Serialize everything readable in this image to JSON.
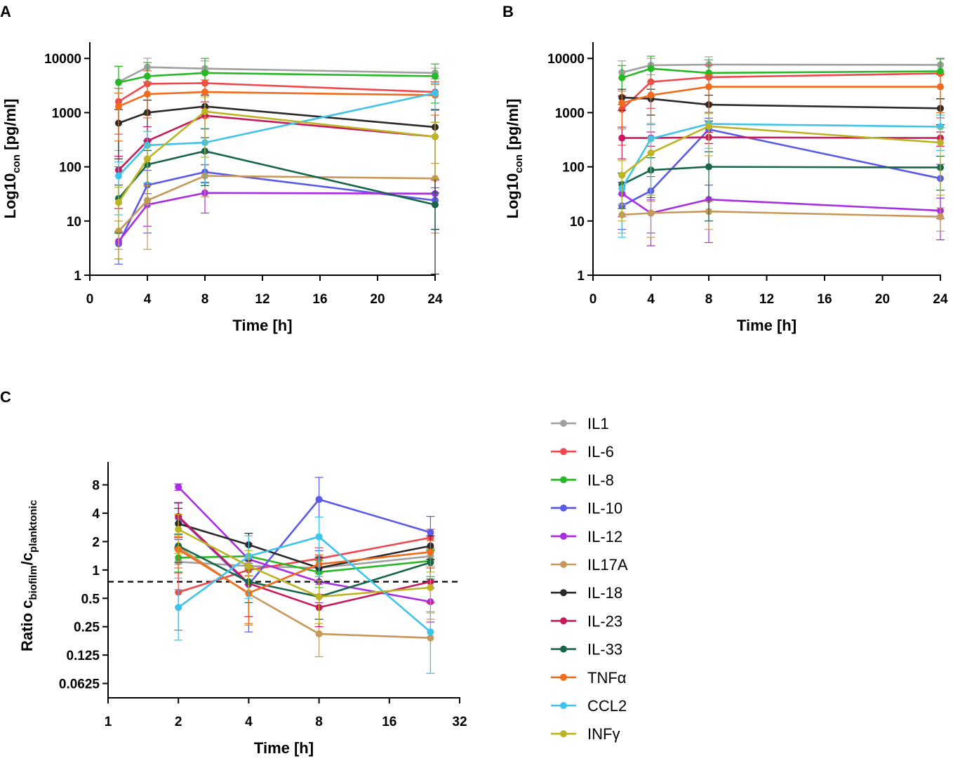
{
  "chart_data": [
    {
      "panel": "A",
      "type": "line",
      "xlabel": "Time [h]",
      "ylabel": "Log10",
      "ylabel_sub": "con",
      "ylabel_unit": " [pg/ml]",
      "xscale": "linear",
      "yscale": "log10",
      "xlim": [
        0,
        24
      ],
      "ylim": [
        1,
        20000
      ],
      "xticks": [
        0,
        4,
        8,
        12,
        16,
        20,
        24
      ],
      "yticks": [
        1,
        10,
        100,
        1000,
        10000
      ],
      "x": [
        2,
        4,
        8,
        24
      ],
      "series": [
        {
          "name": "IL1",
          "values": [
            3700,
            6900,
            6500,
            5400
          ],
          "err": [
            3500,
            3200,
            2500,
            1200
          ]
        },
        {
          "name": "IL-6",
          "values": [
            1600,
            3400,
            3500,
            2400
          ],
          "err": [
            1200,
            2500,
            2300,
            1300
          ]
        },
        {
          "name": "IL-8",
          "values": [
            3600,
            4700,
            5400,
            4700
          ],
          "err": [
            3500,
            3700,
            4600,
            3200
          ]
        },
        {
          "name": "IL-10",
          "values": [
            3.8,
            46,
            80,
            24
          ],
          "err": [
            2.2,
            40,
            30,
            17
          ]
        },
        {
          "name": "IL-12",
          "values": [
            4.2,
            20,
            33,
            32
          ],
          "err": [
            2.2,
            12,
            19,
            25
          ]
        },
        {
          "name": "IL17A",
          "values": [
            6.5,
            24,
            68,
            61
          ],
          "err": [
            3.5,
            21,
            40,
            55
          ]
        },
        {
          "name": "IL-18",
          "values": [
            640,
            1000,
            1300,
            540
          ],
          "err": [
            500,
            700,
            800,
            600
          ]
        },
        {
          "name": "IL-23",
          "values": [
            87,
            300,
            880,
            360
          ],
          "err": [
            70,
            250,
            700,
            300
          ]
        },
        {
          "name": "IL-33",
          "values": [
            26,
            110,
            195,
            20
          ],
          "err": [
            20,
            90,
            150,
            13
          ]
        },
        {
          "name": "TNFα",
          "values": [
            1300,
            2200,
            2400,
            2100
          ],
          "err": [
            1000,
            1400,
            1600,
            1200
          ]
        },
        {
          "name": "CCL2",
          "values": [
            68,
            250,
            280,
            2300
          ],
          "err": [
            55,
            200,
            230,
            1200
          ]
        },
        {
          "name": "INFγ",
          "values": [
            22,
            140,
            1050,
            360
          ],
          "err": [
            20,
            120,
            900,
            300
          ]
        }
      ]
    },
    {
      "panel": "B",
      "type": "line",
      "xlabel": "Time [h]",
      "ylabel": "Log10",
      "ylabel_sub": "con",
      "ylabel_unit": " [pg/ml]",
      "xscale": "linear",
      "yscale": "log10",
      "xlim": [
        0,
        24
      ],
      "ylim": [
        1,
        20000
      ],
      "xticks": [
        0,
        4,
        8,
        12,
        16,
        20,
        24
      ],
      "yticks": [
        1,
        10,
        100,
        1000,
        10000
      ],
      "x": [
        2,
        4,
        8,
        24
      ],
      "series": [
        {
          "name": "IL1",
          "values": [
            5500,
            7500,
            7700,
            7600
          ],
          "err": [
            3500,
            2500,
            3000,
            2500
          ]
        },
        {
          "name": "IL-6",
          "values": [
            1150,
            3700,
            4500,
            5300
          ],
          "err": [
            900,
            2500,
            3000,
            4500
          ]
        },
        {
          "name": "IL-8",
          "values": [
            4400,
            6500,
            5400,
            5800
          ],
          "err": [
            3000,
            4500,
            4000,
            4000
          ]
        },
        {
          "name": "IL-10",
          "values": [
            19,
            36,
            490,
            61
          ],
          "err": [
            12,
            30,
            300,
            50
          ]
        },
        {
          "name": "IL-12",
          "values": [
            32,
            14,
            25,
            15.5
          ],
          "err": [
            20,
            10.5,
            21,
            11
          ]
        },
        {
          "name": "IL17A",
          "values": [
            13,
            14,
            15,
            12
          ],
          "err": [
            7,
            9,
            8,
            5.5
          ]
        },
        {
          "name": "IL-18",
          "values": [
            1900,
            1800,
            1400,
            1200
          ],
          "err": [
            800,
            900,
            700,
            600
          ]
        },
        {
          "name": "IL-23",
          "values": [
            340,
            340,
            350,
            340
          ],
          "err": [
            200,
            100,
            80,
            100
          ]
        },
        {
          "name": "IL-33",
          "values": [
            47,
            87,
            100,
            97
          ],
          "err": [
            30,
            60,
            90,
            60
          ]
        },
        {
          "name": "TNFα",
          "values": [
            1500,
            2100,
            3000,
            3000
          ],
          "err": [
            1000,
            1500,
            2000,
            2000
          ]
        },
        {
          "name": "CCL2",
          "values": [
            40,
            330,
            620,
            550
          ],
          "err": [
            35,
            300,
            400,
            350
          ]
        },
        {
          "name": "INFγ",
          "values": [
            70,
            180,
            560,
            280
          ],
          "err": [
            60,
            150,
            400,
            250
          ]
        }
      ]
    },
    {
      "panel": "C",
      "type": "line",
      "xlabel": "Time [h]",
      "ylabel": "Ratio c",
      "ylabel_sub1": "biofilm",
      "ylabel_mid": "/c",
      "ylabel_sub2": "planktonic",
      "xscale": "log2",
      "yscale": "log2",
      "xlim": [
        1,
        32
      ],
      "ylim": [
        0.044,
        14
      ],
      "xticks": [
        1,
        2,
        4,
        8,
        16,
        32
      ],
      "xtick_labels": [
        "1",
        "2",
        "4",
        "8",
        "16",
        "32"
      ],
      "yticks": [
        0.0625,
        0.125,
        0.25,
        0.5,
        1,
        2,
        4,
        8
      ],
      "ytick_labels": [
        "0.0625",
        "0.125",
        "0.25",
        "0.5",
        "1",
        "2",
        "4",
        "8"
      ],
      "reference_line": 0.75,
      "x": [
        2,
        4,
        8,
        24
      ],
      "series": [
        {
          "name": "IL1",
          "values": [
            1.22,
            1.1,
            1.05,
            1.4
          ],
          "err": [
            0.4,
            0.35,
            0.35,
            0.3
          ]
        },
        {
          "name": "IL-6",
          "values": [
            0.58,
            1.0,
            1.32,
            2.2
          ],
          "err": [
            0.35,
            0.4,
            0.4,
            0.5
          ]
        },
        {
          "name": "IL-8",
          "values": [
            1.35,
            1.4,
            0.95,
            1.25
          ],
          "err": [
            0.4,
            0.4,
            0.3,
            0.4
          ]
        },
        {
          "name": "IL-10",
          "values": [
            3.6,
            0.7,
            5.6,
            2.5
          ],
          "err": [
            1.5,
            0.48,
            4,
            1.2
          ]
        },
        {
          "name": "IL-12",
          "values": [
            7.6,
            1.3,
            0.75,
            0.46
          ],
          "err": [
            0.6,
            0.6,
            0.3,
            0.18
          ]
        },
        {
          "name": "IL17A",
          "values": [
            1.75,
            0.56,
            0.21,
            0.19
          ],
          "err": [
            0.6,
            0.3,
            0.09,
            0.11
          ]
        },
        {
          "name": "IL-18",
          "values": [
            3.1,
            1.85,
            1.05,
            1.8
          ],
          "err": [
            1.4,
            0.6,
            0.3,
            0.5
          ]
        },
        {
          "name": "IL-23",
          "values": [
            3.7,
            0.72,
            0.4,
            0.75
          ],
          "err": [
            1.5,
            0.4,
            0.15,
            0.3
          ]
        },
        {
          "name": "IL-33",
          "values": [
            1.8,
            0.75,
            0.52,
            1.2
          ],
          "err": [
            0.6,
            0.3,
            0.22,
            0.4
          ]
        },
        {
          "name": "TNFα",
          "values": [
            1.65,
            0.57,
            1.15,
            1.55
          ],
          "err": [
            0.6,
            0.3,
            0.3,
            0.5
          ]
        },
        {
          "name": "CCL2",
          "values": [
            0.4,
            1.4,
            2.25,
            0.22
          ],
          "err": [
            0.22,
            0.9,
            1.4,
            0.14
          ]
        },
        {
          "name": "INFγ",
          "values": [
            2.7,
            1.1,
            0.52,
            0.65
          ],
          "err": [
            1.2,
            0.5,
            0.25,
            0.3
          ]
        }
      ]
    }
  ],
  "legend": {
    "items": [
      {
        "name": "IL1",
        "color": "#a0a0a0"
      },
      {
        "name": "IL-6",
        "color": "#f0474d"
      },
      {
        "name": "IL-8",
        "color": "#27b826"
      },
      {
        "name": "IL-10",
        "color": "#5a5aea"
      },
      {
        "name": "IL-12",
        "color": "#a92ee3"
      },
      {
        "name": "IL17A",
        "color": "#c8975a"
      },
      {
        "name": "IL-18",
        "color": "#2a2a2a"
      },
      {
        "name": "IL-23",
        "color": "#c9195c"
      },
      {
        "name": "IL-33",
        "color": "#16664a"
      },
      {
        "name": "TNFα",
        "color": "#f26a1b"
      },
      {
        "name": "CCL2",
        "color": "#3ec3ec"
      },
      {
        "name": "INFγ",
        "color": "#bcb424"
      }
    ]
  }
}
